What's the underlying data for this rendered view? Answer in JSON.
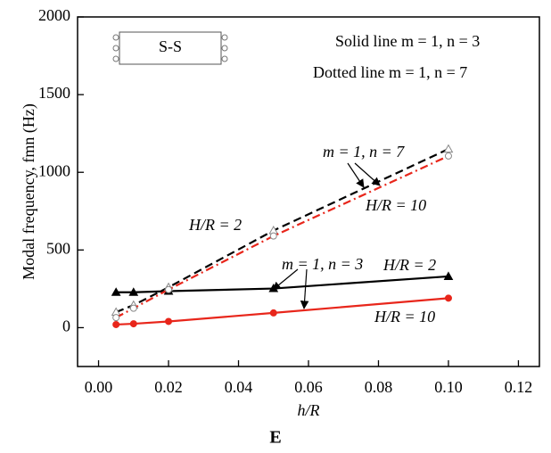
{
  "chart_data": {
    "type": "line",
    "x_label": "h/R",
    "y_label": "Modal frequency, fmn (Hz)",
    "caption": "E",
    "x": [
      0.005,
      0.01,
      0.02,
      0.05,
      0.1
    ],
    "series": [
      {
        "color": "#000000",
        "line": "solid",
        "marker": "triangle",
        "filled": true,
        "values": [
          228,
          228,
          235,
          252,
          330
        ]
      },
      {
        "color": "#e8261b",
        "line": "solid",
        "marker": "circle",
        "filled": true,
        "values": [
          20,
          25,
          40,
          95,
          190
        ]
      },
      {
        "color": "#000000",
        "line": "dashed",
        "marker": "triangle",
        "filled": false,
        "values": [
          100,
          145,
          260,
          625,
          1150
        ]
      },
      {
        "color": "#e8261b",
        "line": "dashdot",
        "marker": "circle",
        "filled": false,
        "values": [
          65,
          125,
          245,
          590,
          1105
        ]
      }
    ],
    "xlim": [
      -0.006,
      0.126
    ],
    "ylim": [
      -250,
      2000
    ],
    "xticks": [
      {
        "value": 0,
        "label": "0.00"
      },
      {
        "value": 0.02,
        "label": "0.02"
      },
      {
        "value": 0.04,
        "label": "0.04"
      },
      {
        "value": 0.06,
        "label": "0.06"
      },
      {
        "value": 0.08,
        "label": "0.08"
      },
      {
        "value": 0.1,
        "label": "0.10"
      },
      {
        "value": 0.12,
        "label": "0.12"
      }
    ],
    "yticks": [
      0,
      500,
      1000,
      1500,
      2000
    ],
    "annotations": [
      "S-S",
      "Solid line m = 1, n = 3",
      "Dotted line m = 1, n = 7",
      "m = 1, n = 7",
      "H/R = 10",
      "H/R = 2",
      "m = 1, n = 3",
      "H/R = 2",
      "H/R = 10"
    ]
  }
}
